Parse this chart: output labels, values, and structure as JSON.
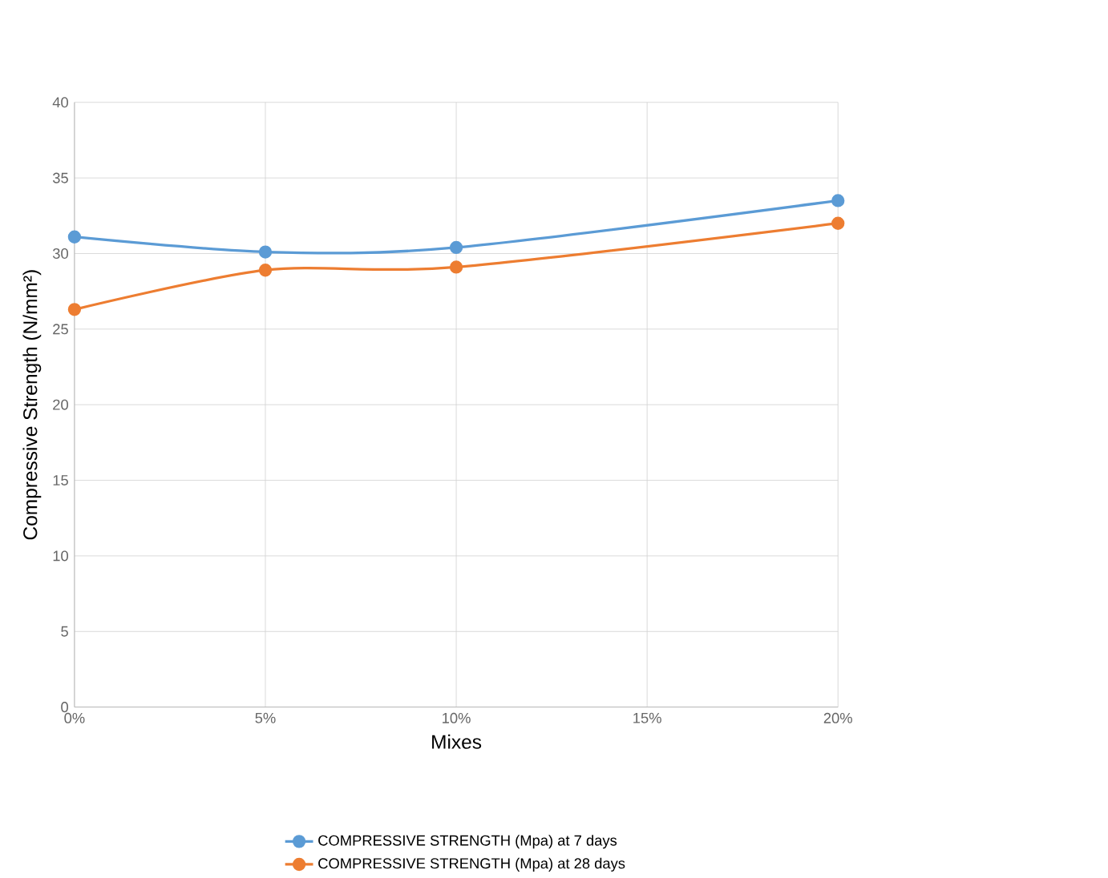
{
  "chart_data": {
    "type": "line",
    "xlabel": "Mixes",
    "ylabel": "Compressive Strength (N/mm²)",
    "x": [
      0,
      5,
      10,
      20
    ],
    "series": [
      {
        "name": "COMPRESSIVE STRENGTH (Mpa) at 7 days",
        "color": "#5b9bd5",
        "values": [
          31.1,
          30.1,
          30.4,
          33.5
        ]
      },
      {
        "name": "COMPRESSIVE STRENGTH (Mpa) at 28 days",
        "color": "#ed7d31",
        "values": [
          26.3,
          28.9,
          29.1,
          32.0
        ]
      }
    ],
    "xlim": [
      0,
      20
    ],
    "xticks": [
      {
        "value": 0,
        "label": "0%"
      },
      {
        "value": 5,
        "label": "5%"
      },
      {
        "value": 10,
        "label": "10%"
      },
      {
        "value": 15,
        "label": "15%"
      },
      {
        "value": 20,
        "label": "20%"
      }
    ],
    "ylim": [
      0,
      40
    ],
    "yticks": [
      0,
      5,
      10,
      15,
      20,
      25,
      30,
      35,
      40
    ],
    "grid": true,
    "legend": "bottom",
    "marker": "circle",
    "line_style": "solid"
  }
}
